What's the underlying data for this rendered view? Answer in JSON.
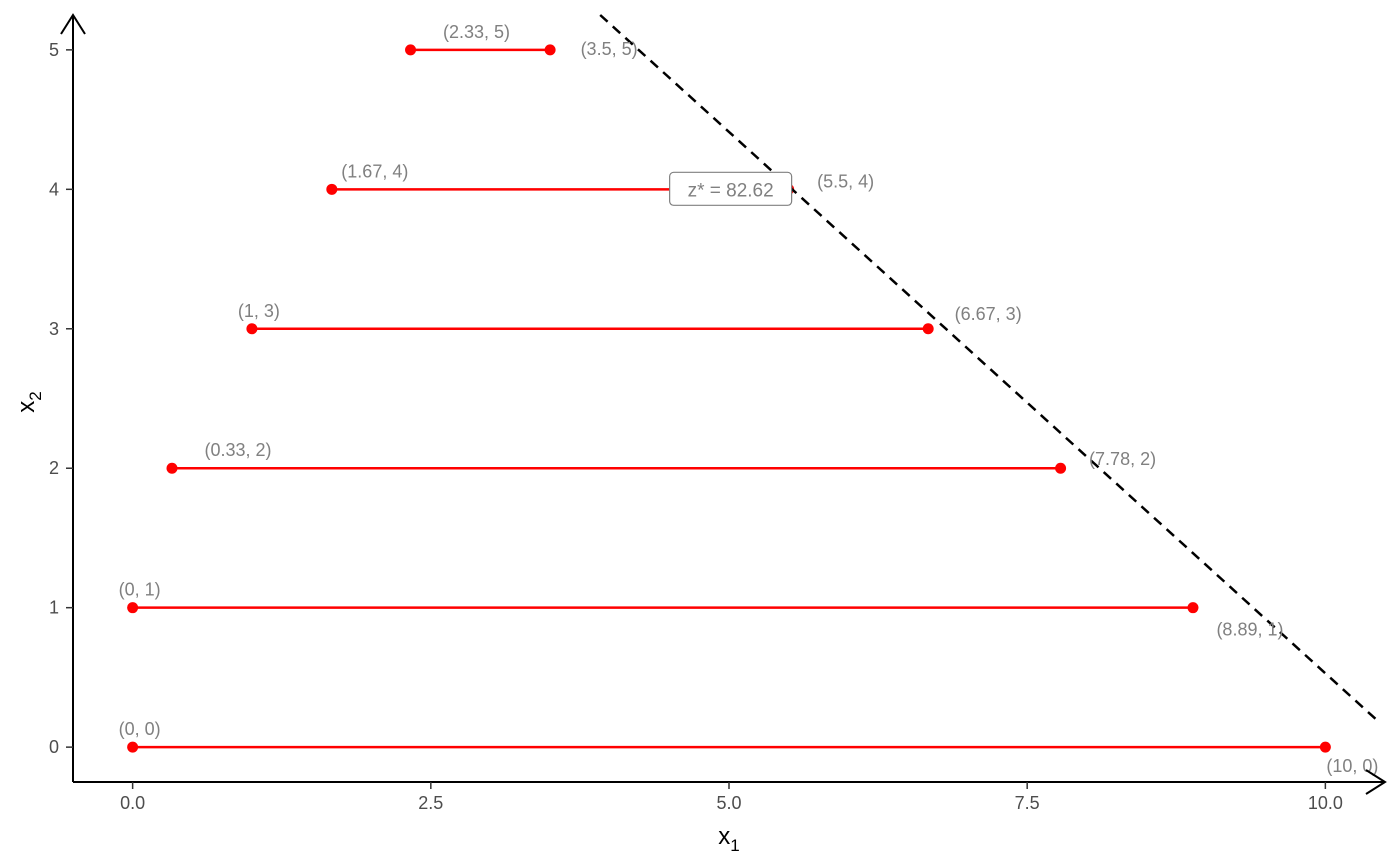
{
  "chart_data": {
    "type": "line",
    "title": "",
    "xlabel": "x",
    "xlabel_sub": "1",
    "ylabel": "x",
    "ylabel_sub": "2",
    "xlim": [
      -0.5,
      10.5
    ],
    "ylim": [
      -0.25,
      5.25
    ],
    "x_ticks": [
      0,
      2.5,
      5,
      7.5,
      10
    ],
    "x_tick_labels": [
      "0.0",
      "2.5",
      "5.0",
      "7.5",
      "10.0"
    ],
    "y_ticks": [
      0,
      1,
      2,
      3,
      4,
      5
    ],
    "y_tick_labels": [
      "0",
      "1",
      "2",
      "3",
      "4",
      "5"
    ],
    "grid": false,
    "segments": [
      {
        "y": 0,
        "x_start": 0,
        "x_end": 10,
        "left_label": "(0, 0)",
        "right_label": "(10, 0)"
      },
      {
        "y": 1,
        "x_start": 0,
        "x_end": 8.89,
        "left_label": "(0, 1)",
        "right_label": "(8.89, 1)"
      },
      {
        "y": 2,
        "x_start": 0.33,
        "x_end": 7.78,
        "left_label": "(0.33, 2)",
        "right_label": "(7.78, 2)"
      },
      {
        "y": 3,
        "x_start": 1,
        "x_end": 6.67,
        "left_label": "(1, 3)",
        "right_label": "(6.67, 3)"
      },
      {
        "y": 4,
        "x_start": 1.67,
        "x_end": 5.5,
        "left_label": "(1.67, 4)",
        "right_label": "(5.5, 4)"
      },
      {
        "y": 5,
        "x_start": 2.33,
        "x_end": 3.5,
        "left_label": "(2.33, 5)",
        "right_label": "(3.5, 5)"
      }
    ],
    "objective_line": {
      "points": [
        [
          3.92,
          5.25
        ],
        [
          10.45,
          0.18
        ]
      ],
      "style": "dashed",
      "color": "#000000"
    },
    "objective_label": {
      "text": "z* = 82.62",
      "x": 5.5,
      "y": 4
    },
    "colors": {
      "segment": "#ff0000",
      "point_label": "#808080",
      "axis": "#000000"
    }
  }
}
